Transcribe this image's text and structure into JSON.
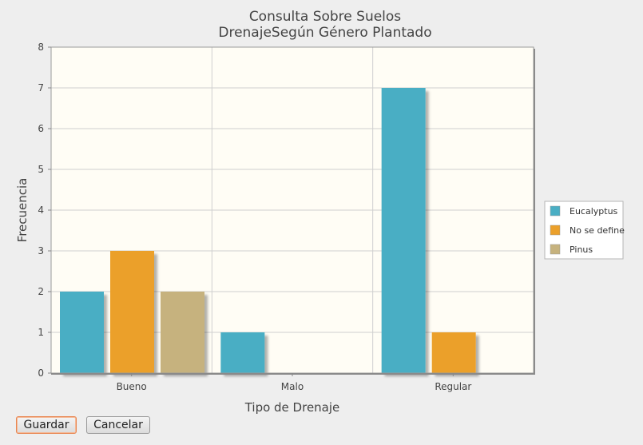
{
  "buttons": {
    "save_label": "Guardar",
    "cancel_label": "Cancelar"
  },
  "chart_data": {
    "type": "bar",
    "title": [
      "Consulta Sobre Suelos",
      "DrenajeSegún Género Plantado"
    ],
    "xlabel": "Tipo de Drenaje",
    "ylabel": "Frecuencia",
    "categories": [
      "Bueno",
      "Malo",
      "Regular"
    ],
    "series": [
      {
        "name": "Eucalyptus",
        "color": "#4aaec4",
        "values": [
          2,
          1,
          7
        ]
      },
      {
        "name": "No se define",
        "color": "#eba02b",
        "values": [
          3,
          0,
          1
        ]
      },
      {
        "name": "Pinus",
        "color": "#c6b27e",
        "values": [
          2,
          0,
          0
        ]
      }
    ],
    "ylim": [
      0,
      8
    ],
    "yticks": [
      0,
      1,
      2,
      3,
      4,
      5,
      6,
      7,
      8
    ],
    "grid": true,
    "legend_position": "right",
    "plot_background": "#fffdf5"
  }
}
